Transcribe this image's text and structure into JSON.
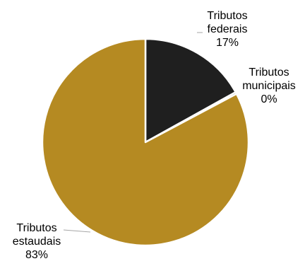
{
  "chart_data": {
    "type": "pie",
    "title": "",
    "categories": [
      "Tributos federais",
      "Tributos municipais",
      "Tributos estaduais"
    ],
    "values": [
      17,
      0,
      83
    ],
    "unit": "%",
    "start_angle_deg": 0,
    "direction": "clockwise",
    "legend": "none",
    "slices": [
      {
        "label_lines": [
          "Tributos",
          "federais"
        ],
        "value_label": "17%",
        "value": 17,
        "color": "#1f1f1f"
      },
      {
        "label_lines": [
          "Tributos",
          "municipais"
        ],
        "value_label": "0%",
        "value": 0.3,
        "color": "#1f1f1f"
      },
      {
        "label_lines": [
          "Tributos",
          "estaudais"
        ],
        "value_label": "83%",
        "value": 83,
        "color": "#b58a22"
      }
    ],
    "separator_color": "#ffffff",
    "leader_color": "#a6a6a6"
  }
}
